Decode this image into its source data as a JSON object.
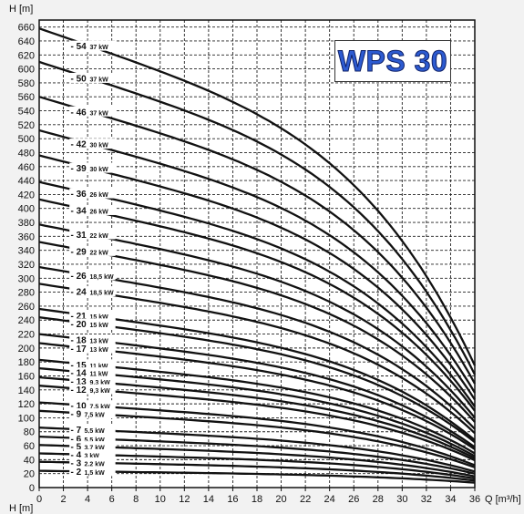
{
  "title_box": {
    "text": "WPS 30",
    "color": "#2d5bd1"
  },
  "axes": {
    "ylabel": "H [m]",
    "ylabel_bottom": "H [m]",
    "xlabel": "Q [m³/h]"
  },
  "chart_data": {
    "type": "line",
    "title": "WPS 30",
    "xlabel": "Q [m³/h]",
    "ylabel": "H [m]",
    "xlim": [
      0,
      36
    ],
    "ylim": [
      0,
      670
    ],
    "xticks": [
      "0",
      "2",
      "4",
      "6",
      "8",
      "10",
      "12",
      "14",
      "16",
      "18",
      "20",
      "22",
      "24",
      "26",
      "28",
      "30",
      "32",
      "34",
      "36"
    ],
    "yticks": [
      "0",
      "20",
      "40",
      "60",
      "80",
      "100",
      "120",
      "140",
      "160",
      "180",
      "200",
      "220",
      "240",
      "260",
      "280",
      "300",
      "320",
      "340",
      "360",
      "380",
      "400",
      "420",
      "440",
      "460",
      "480",
      "500",
      "520",
      "540",
      "560",
      "580",
      "600",
      "620",
      "640",
      "660"
    ],
    "grid": true,
    "series": [
      {
        "name": "54",
        "power": "37 kW",
        "shutoff": 658,
        "end": 175
      },
      {
        "name": "50",
        "power": "37 kW",
        "shutoff": 610,
        "end": 162
      },
      {
        "name": "46",
        "power": "37 kW",
        "shutoff": 560,
        "end": 149
      },
      {
        "name": "42",
        "power": "30 kW",
        "shutoff": 512,
        "end": 136
      },
      {
        "name": "39",
        "power": "30 kW",
        "shutoff": 476,
        "end": 126
      },
      {
        "name": "36",
        "power": "26 kW",
        "shutoff": 438,
        "end": 116
      },
      {
        "name": "34",
        "power": "26 kW",
        "shutoff": 413,
        "end": 110
      },
      {
        "name": "31",
        "power": "22 kW",
        "shutoff": 377,
        "end": 100
      },
      {
        "name": "29",
        "power": "22 kW",
        "shutoff": 352,
        "end": 94
      },
      {
        "name": "26",
        "power": "18,5 kW",
        "shutoff": 316,
        "end": 84
      },
      {
        "name": "24",
        "power": "18,5 kW",
        "shutoff": 292,
        "end": 78
      },
      {
        "name": "21",
        "power": "15 kW",
        "shutoff": 256,
        "end": 68
      },
      {
        "name": "20",
        "power": "15 kW",
        "shutoff": 244,
        "end": 65
      },
      {
        "name": "18",
        "power": "13 kW",
        "shutoff": 220,
        "end": 58
      },
      {
        "name": "17",
        "power": "13 kW",
        "shutoff": 207,
        "end": 55
      },
      {
        "name": "15",
        "power": "11 kW",
        "shutoff": 183,
        "end": 49
      },
      {
        "name": "14",
        "power": "11 kW",
        "shutoff": 171,
        "end": 45
      },
      {
        "name": "13",
        "power": "9,3 kW",
        "shutoff": 158,
        "end": 42
      },
      {
        "name": "12",
        "power": "9,3 kW",
        "shutoff": 146,
        "end": 39
      },
      {
        "name": "10",
        "power": "7,5 kW",
        "shutoff": 122,
        "end": 32
      },
      {
        "name": "9",
        "power": "7,5 kW",
        "shutoff": 110,
        "end": 29
      },
      {
        "name": "7",
        "power": "5,5 kW",
        "shutoff": 86,
        "end": 23
      },
      {
        "name": "6",
        "power": "5,5 kW",
        "shutoff": 73,
        "end": 20
      },
      {
        "name": "5",
        "power": "3,7 kW",
        "shutoff": 61,
        "end": 16
      },
      {
        "name": "4",
        "power": "3 kW",
        "shutoff": 49,
        "end": 13
      },
      {
        "name": "3",
        "power": "2,2 kW",
        "shutoff": 37,
        "end": 10
      },
      {
        "name": "2",
        "power": "1,5 kW",
        "shutoff": 24,
        "end": 7
      }
    ]
  }
}
